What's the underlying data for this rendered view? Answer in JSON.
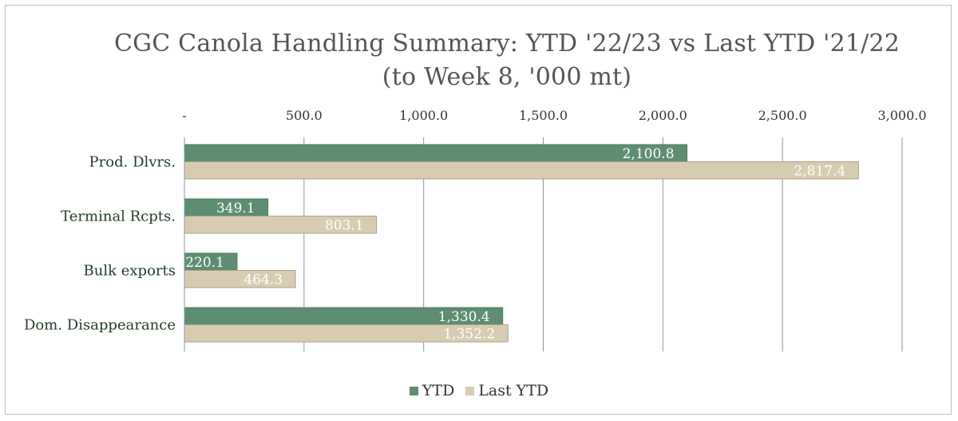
{
  "chart_data": {
    "type": "bar",
    "orientation": "horizontal",
    "title_lines": [
      "CGC Canola Handling Summary: YTD '22/23 vs Last YTD '21/22",
      "(to Week 8, '000 mt)"
    ],
    "categories": [
      "Prod. Dlvrs.",
      "Terminal Rcpts.",
      "Bulk exports",
      "Dom. Disappearance"
    ],
    "series": [
      {
        "name": "YTD",
        "values": [
          2100.8,
          349.1,
          220.1,
          1330.4
        ],
        "labels": [
          "2,100.8",
          "349.1",
          "220.1",
          "1,330.4"
        ],
        "color": "#5e8e72"
      },
      {
        "name": "Last YTD",
        "values": [
          2817.4,
          803.1,
          464.3,
          1352.2
        ],
        "labels": [
          "2,817.4",
          "803.1",
          "464.3",
          "1,352.2"
        ],
        "color": "#d8ccb0"
      }
    ],
    "x_ticks": [
      {
        "value": 0,
        "label": "-"
      },
      {
        "value": 500,
        "label": "500.0"
      },
      {
        "value": 1000,
        "label": "1,000.0"
      },
      {
        "value": 1500,
        "label": "1,500.0"
      },
      {
        "value": 2000,
        "label": "2,000.0"
      },
      {
        "value": 2500,
        "label": "2,500.0"
      },
      {
        "value": 3000,
        "label": "3,000.0"
      }
    ],
    "xlim": [
      0,
      3000
    ],
    "x_axis_position": "top",
    "grid": true,
    "legend_position": "bottom"
  },
  "colors": {
    "ytd": "#5e8e72",
    "last_ytd": "#d8ccb0",
    "grid": "#8a97a8",
    "category_text": "#1f3d24"
  }
}
